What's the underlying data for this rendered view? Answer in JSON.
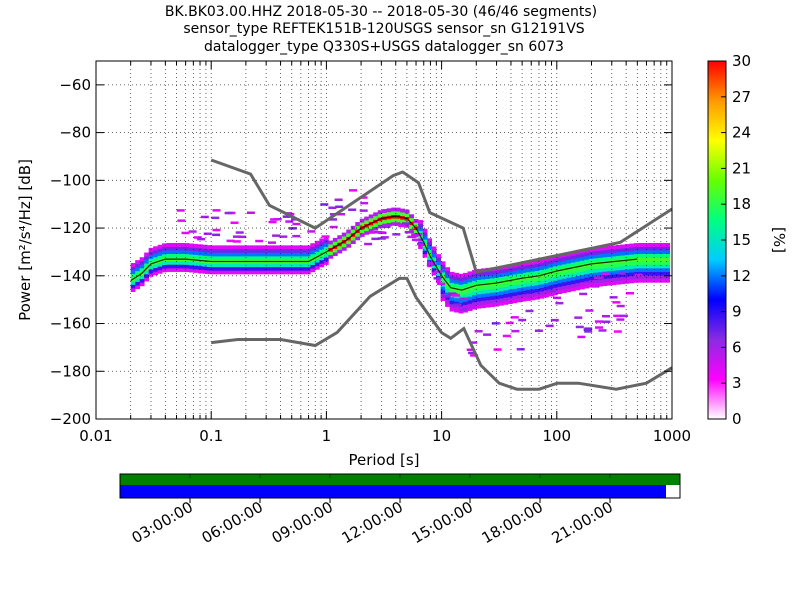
{
  "chart_data": {
    "type": "heatmap",
    "title_lines": [
      "BK.BK03.00.HHZ   2018-05-30 -- 2018-05-30  (46/46 segments)",
      "sensor_type REFTEK151B-120USGS sensor_sn G12191VS",
      "datalogger_type Q330S+USGS datalogger_sn 6073"
    ],
    "xlabel": "Period [s]",
    "ylabel": "Power [m²/s⁴/Hz] [dB]",
    "xscale": "log",
    "xlim": [
      0.01,
      1000
    ],
    "ylim": [
      -200,
      -50
    ],
    "x_ticks": [
      0.01,
      0.1,
      1,
      10,
      100,
      1000
    ],
    "x_tick_labels": [
      "0.01",
      "0.1",
      "1",
      "10",
      "100",
      "1000"
    ],
    "y_ticks": [
      -200,
      -180,
      -160,
      -140,
      -120,
      -100,
      -80,
      -60
    ],
    "y_tick_labels": [
      "−200",
      "−180",
      "−160",
      "−140",
      "−120",
      "−100",
      "−80",
      "−60"
    ],
    "colorbar": {
      "label": "[%]",
      "range": [
        0,
        30
      ],
      "ticks": [
        0,
        3,
        6,
        9,
        12,
        15,
        18,
        21,
        24,
        27,
        30
      ],
      "tick_labels": [
        "0",
        "3",
        "6",
        "9",
        "12",
        "15",
        "18",
        "21",
        "24",
        "27",
        "30"
      ],
      "colormap": [
        "#ffffff",
        "#ff00ff",
        "#8a2be2",
        "#0000ff",
        "#00ccff",
        "#00ff80",
        "#66ff00",
        "#ffff00",
        "#ff9900",
        "#ff0000"
      ]
    },
    "noise_model_high": {
      "x": [
        0.1,
        0.22,
        0.32,
        0.8,
        3.8,
        4.6,
        6.3,
        7.9,
        15.4,
        20,
        354.8,
        1000
      ],
      "y": [
        -91.5,
        -97.4,
        -110.5,
        -120,
        -98,
        -96.5,
        -101,
        -113.5,
        -120,
        -138.5,
        -126,
        -112
      ]
    },
    "noise_model_low": {
      "x": [
        0.1,
        0.17,
        0.4,
        0.8,
        1.24,
        2.4,
        4.3,
        5,
        6,
        10,
        12,
        15.6,
        21.9,
        31.6,
        45,
        70,
        101,
        154,
        328,
        600,
        1000
      ],
      "y": [
        -168,
        -166.7,
        -166.7,
        -169.2,
        -163.7,
        -148.6,
        -141.1,
        -141.1,
        -149,
        -163.8,
        -166.2,
        -162.1,
        -177.5,
        -185,
        -187.5,
        -187.5,
        -185,
        -185,
        -187.5,
        -185,
        -178.5
      ]
    },
    "median_psd": {
      "x": [
        0.02,
        0.025,
        0.03,
        0.04,
        0.06,
        0.1,
        0.2,
        0.4,
        0.7,
        1,
        1.5,
        2,
        3,
        4,
        5,
        6,
        7,
        8,
        10,
        12,
        15,
        20,
        30,
        50,
        70,
        100,
        200,
        500
      ],
      "y": [
        -142,
        -139,
        -135,
        -133,
        -133,
        -134,
        -134,
        -134,
        -134,
        -130,
        -125,
        -120,
        -116,
        -115,
        -116,
        -120,
        -126,
        -132,
        -140,
        -145,
        -146,
        -144,
        -143,
        -141,
        -140,
        -138,
        -135,
        -133
      ]
    },
    "time_coverage": {
      "tick_labels": [
        "03:00:00",
        "06:00:00",
        "09:00:00",
        "12:00:00",
        "15:00:00",
        "18:00:00",
        "21:00:00"
      ],
      "start_hour": 0,
      "end_hour": 24,
      "data_end_hour": 23.4,
      "data_bar_color": "#0000ff",
      "gap_bar_color": "#008000"
    }
  }
}
